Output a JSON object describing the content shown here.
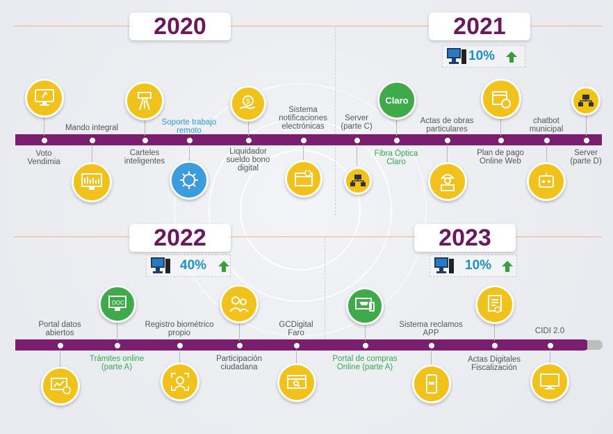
{
  "years": {
    "y2020": "2020",
    "y2021": "2021",
    "y2022": "2022",
    "y2023": "2023"
  },
  "stats": {
    "s2021": "10%",
    "s2022": "40%",
    "s2023": "10%"
  },
  "claro_text": "Claro",
  "row1": {
    "voto": "Voto Vendimia",
    "mando": "Mando integral",
    "carteles": "Carteles inteligentes",
    "soporte": "Soporte trabajo remoto",
    "liquidador": "Liquidador sueldo bono digital",
    "sistema": "Sistema notificaciones electrónicas",
    "server_c": "Server (parte C)",
    "fibra": "Fibra Óptica Claro",
    "actas_obras": "Actas de obras particulares",
    "plan_pago": "Plan de pago Online Web",
    "chatbot": "chatbot municipal",
    "server_d": "Server (parte D)"
  },
  "row2": {
    "portal_datos": "Portal datos abiertos",
    "tramites": "Trámites online (parte A)",
    "registro": "Registro biométrico propio",
    "participacion": "Participación ciudadana",
    "gcdigital": "GCDigital Faro",
    "portal_compras": "Portal de compras Online (parte A)",
    "reclamos": "Sistema reclamos APP",
    "actas_digitales": "Actas Digitales Fiscalización",
    "cidi": "CIDI 2.0"
  },
  "icons": {
    "i_voto": "monitor-hand-icon",
    "i_mando": "dashboard-monitor-icon",
    "i_carteles": "road-sign-icon",
    "i_soporte": "virus-icon",
    "i_liquidador": "money-hand-icon",
    "i_sistema": "notification-window-icon",
    "i_server": "network-server-icon",
    "i_claro": "claro-logo-icon",
    "i_actas": "worker-icon",
    "i_plan": "calendar-payment-icon",
    "i_chatbot": "chatbot-icon",
    "i_doc": "doc-monitor-icon",
    "i_chart": "chart-monitor-icon",
    "i_face": "face-scan-icon",
    "i_people": "people-icon",
    "i_faro": "search-window-icon",
    "i_cart": "shopping-cart-icon",
    "i_phone": "phone-icon",
    "i_certificate": "certificate-icon",
    "i_monitor": "monitor-icon"
  },
  "colors": {
    "bar": "#7a1f6f",
    "year_text": "#6a1a5c",
    "yellow": "#f1c21b",
    "green": "#3faa4a",
    "blue": "#3c9cdc",
    "label_green": "#34a853",
    "label_blue": "#2a9bd6"
  }
}
